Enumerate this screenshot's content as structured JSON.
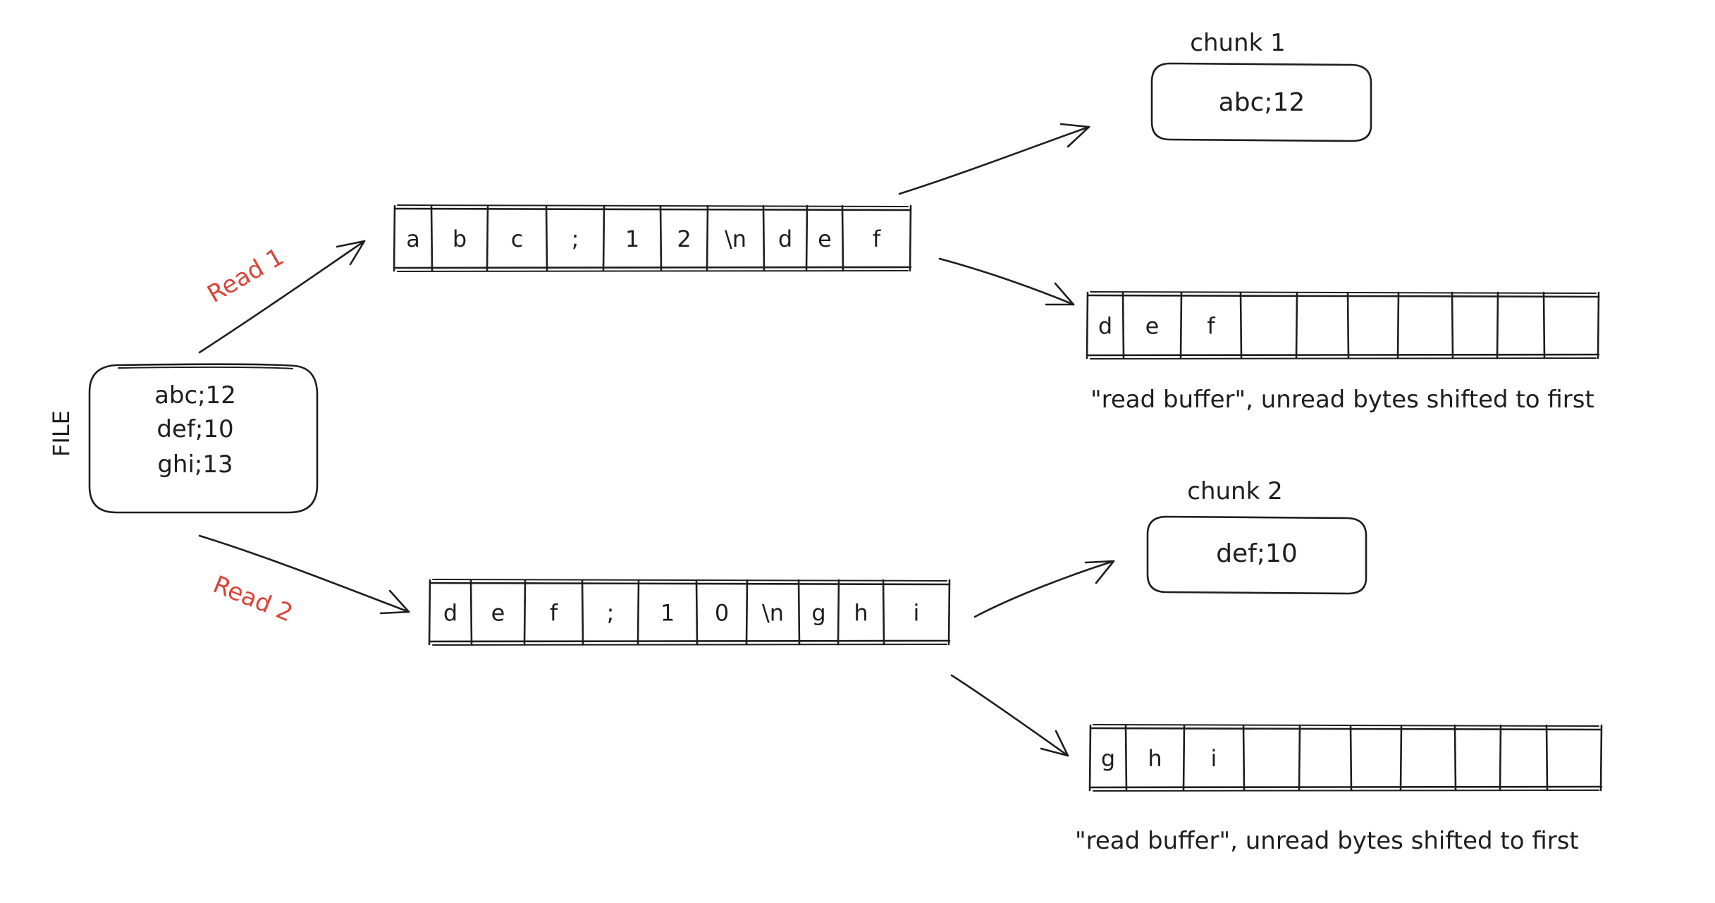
{
  "file_box": {
    "side_label": "FILE",
    "lines": [
      "abc;12",
      "def;10",
      "ghi;13"
    ]
  },
  "reads": [
    {
      "label": "Read 1",
      "cells": [
        "a",
        "b",
        "c",
        ";",
        "1",
        "2",
        "\\n",
        "d",
        "e",
        "f"
      ],
      "cell_colors": [
        "#1e1e1e",
        "#1e1e1e",
        "#1e1e1e",
        "#1e1e1e",
        "#1e1e1e",
        "#1e1e1e",
        "#1e1e1e",
        "#e8930c",
        "#e8930c",
        "#e8930c"
      ]
    },
    {
      "label": "Read 2",
      "cells": [
        "d",
        "e",
        "f",
        ";",
        "1",
        "0",
        "\\n",
        "g",
        "h",
        "i"
      ],
      "cell_colors": [
        "#1e1e1e",
        "#1e1e1e",
        "#1e1e1e",
        "#1e1e1e",
        "#1e1e1e",
        "#1e1e1e",
        "#1e1e1e",
        "#1e1e1e",
        "#1e1e1e",
        "#1e1e1e"
      ]
    }
  ],
  "chunks": [
    {
      "title": "chunk 1",
      "content": "abc;12"
    },
    {
      "title": "chunk 2",
      "content": "def;10"
    }
  ],
  "read_buffers": [
    {
      "cells": [
        "d",
        "e",
        "f",
        "",
        "",
        "",
        "",
        "",
        "",
        ""
      ],
      "cell_color": "#e8930c",
      "caption": "\"read buffer\", unread bytes shifted to first"
    },
    {
      "cells": [
        "g",
        "h",
        "i",
        "",
        "",
        "",
        "",
        "",
        "",
        ""
      ],
      "cell_color": "#3a9a3a",
      "caption": "\"read buffer\", unread bytes shifted to first"
    }
  ],
  "colors": {
    "ink": "#1e1e1e",
    "read_label": "#d9443a",
    "carryover": "#e8930c",
    "carryover_2": "#3a9a3a"
  }
}
